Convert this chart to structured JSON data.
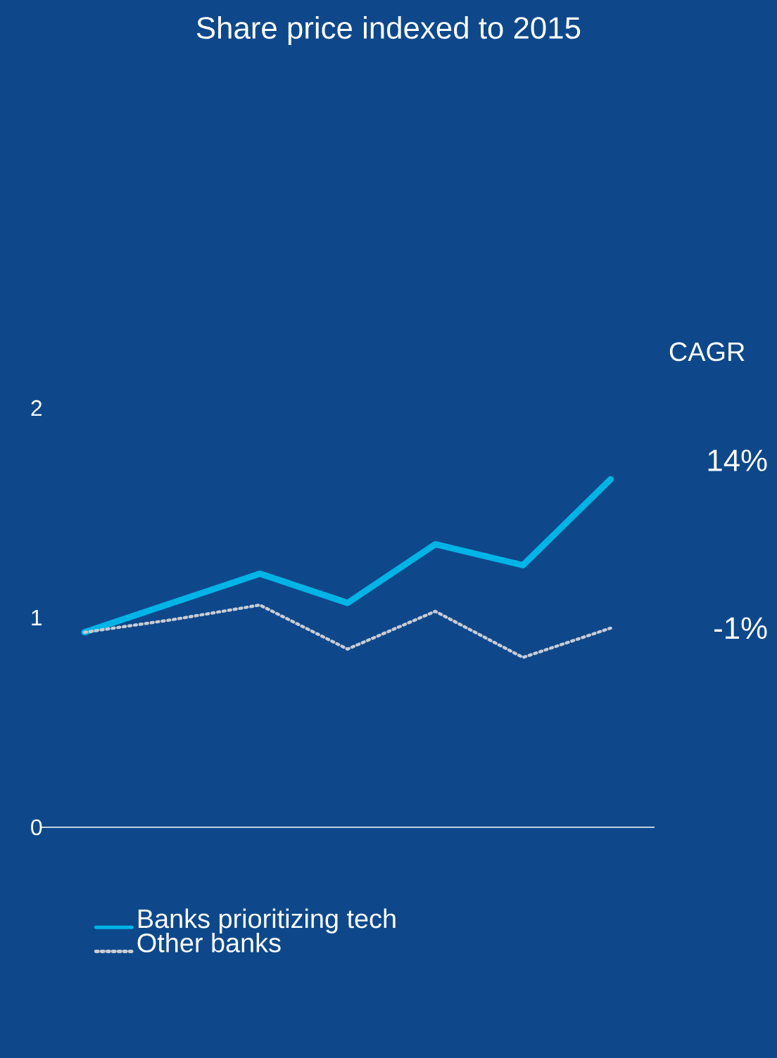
{
  "chart_data": {
    "type": "line",
    "title": "Share price indexed to 2015",
    "categories": [
      null,
      null,
      null,
      null,
      null,
      null,
      null
    ],
    "series": [
      {
        "name": "Banks prioritizing tech",
        "color": "#00b4e6",
        "line_style": "solid",
        "values": [
          0.93,
          1.07,
          1.21,
          1.07,
          1.35,
          1.25,
          1.66
        ]
      },
      {
        "name": "Other banks",
        "color": "#c8ccd4",
        "line_style": "dotted",
        "values": [
          0.93,
          0.99,
          1.06,
          0.85,
          1.03,
          0.81,
          0.95
        ]
      }
    ],
    "ylim": [
      0,
      2
    ],
    "yticks": [
      0,
      1,
      2
    ],
    "tick_labels": "y",
    "legend": "bottom",
    "marker": "none",
    "annotations": [
      "CAGR",
      "14%",
      "-1%"
    ]
  }
}
